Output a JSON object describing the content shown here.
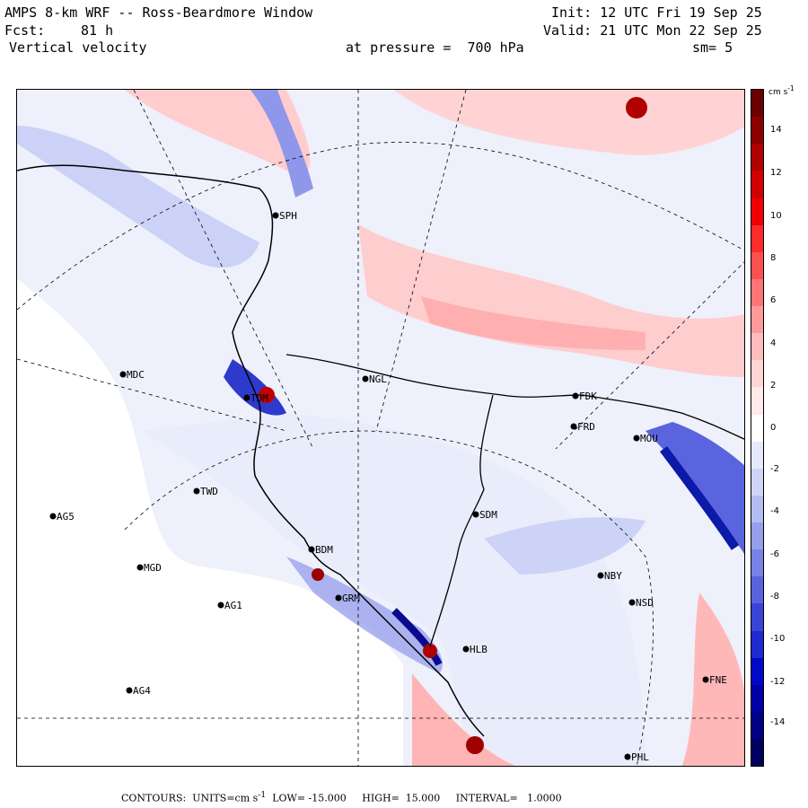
{
  "header": {
    "title": "AMPS 8-km WRF -- Ross-Beardmore Window",
    "init": "Init: 12 UTC Fri 19 Sep 25",
    "fcst_label": "Fcst:",
    "fcst_value": "81 h",
    "valid": "Valid: 21 UTC Mon 22 Sep 25",
    "field": "Vertical velocity",
    "pressure": "at pressure =  700 hPa",
    "smoothing": "sm= 5"
  },
  "stations": [
    {
      "code": "SPH"
    },
    {
      "code": "MDC"
    },
    {
      "code": "NGL"
    },
    {
      "code": "FDK"
    },
    {
      "code": "TDM"
    },
    {
      "code": "FRD"
    },
    {
      "code": "MOU"
    },
    {
      "code": "TWD"
    },
    {
      "code": "AG5"
    },
    {
      "code": "SDM"
    },
    {
      "code": "BDM"
    },
    {
      "code": "MGD"
    },
    {
      "code": "NBY"
    },
    {
      "code": "GRM"
    },
    {
      "code": "AG1"
    },
    {
      "code": "NSD"
    },
    {
      "code": "HLB"
    },
    {
      "code": "FNE"
    },
    {
      "code": "AG4"
    },
    {
      "code": "PHL"
    }
  ],
  "colorbar": {
    "unit": "cm s",
    "unit_sup": "-1",
    "ticks": [
      "14",
      "12",
      "10",
      "8",
      "6",
      "4",
      "2",
      "0",
      "-2",
      "-4",
      "-6",
      "-8",
      "-10",
      "-12",
      "-14"
    ],
    "colors": [
      "#6b0000",
      "#8c0000",
      "#b00000",
      "#d20000",
      "#f00000",
      "#ff2a2a",
      "#ff5050",
      "#ff7676",
      "#ff9a9a",
      "#ffbcbc",
      "#ffd6d6",
      "#ffe9e9",
      "#ffffff",
      "#e6e9fb",
      "#cfd5f7",
      "#b4bcf2",
      "#969fec",
      "#7882e6",
      "#5963df",
      "#3a45d8",
      "#1e2ad2",
      "#0009c8",
      "#0000a6",
      "#000084",
      "#00005f"
    ]
  },
  "footer": {
    "contours": "CONTOURS:",
    "units_label": "UNITS=cm s",
    "units_sup": "-1",
    "low": "LOW= -15.000",
    "high": "HIGH=  15.000",
    "interval": "INTERVAL=   1.0000"
  }
}
